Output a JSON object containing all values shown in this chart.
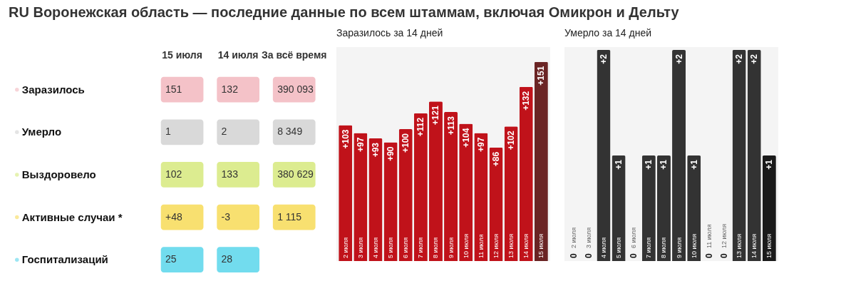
{
  "chart_data": [
    {
      "type": "other",
      "title": "RU Воронежская область — последние данные по всем штаммам, включая Омикрон и Дельту",
      "categories": [
        "15 июля",
        "14 июля",
        "За всё время"
      ],
      "y_categories": [
        "Заразилось",
        "Умерло",
        "Выздоровело",
        "Активные случаи *",
        "Госпитализаций"
      ],
      "colors": [
        "#f4c2c8",
        "#d9d9d9",
        "#dcec90",
        "#f8e070",
        "#72dcee"
      ],
      "cell_labels": [
        [
          "151",
          "132",
          "390 093"
        ],
        [
          "1",
          "2",
          "8 349"
        ],
        [
          "102",
          "133",
          "380 629"
        ],
        [
          "+48",
          "-3",
          "1 115"
        ],
        [
          "25",
          "28",
          null
        ]
      ]
    },
    {
      "type": "bar",
      "title": "Заразилось за 14 дней",
      "categories": [
        "2 июля",
        "3 июля",
        "4 июля",
        "5 июля",
        "6 июля",
        "7 июля",
        "8 июля",
        "9 июля",
        "10 июля",
        "11 июля",
        "12 июля",
        "13 июля",
        "14 июля",
        "15 июля"
      ],
      "values": [
        103,
        97,
        93,
        90,
        100,
        112,
        121,
        113,
        104,
        97,
        86,
        102,
        132,
        151
      ],
      "value_labels": [
        "+103",
        "+97",
        "+93",
        "+90",
        "+100",
        "+112",
        "+121",
        "+113",
        "+104",
        "+97",
        "+86",
        "+102",
        "+132",
        "+151"
      ],
      "colors": [
        "#c0121a",
        "#c0121a",
        "#c0121a",
        "#c0121a",
        "#c0121a",
        "#c0121a",
        "#c0121a",
        "#c0121a",
        "#c0121a",
        "#c0121a",
        "#c0121a",
        "#c0121a",
        "#c0121a",
        "#6a2424"
      ]
    },
    {
      "type": "bar",
      "title": "Умерло за 14 дней",
      "categories": [
        "2 июля",
        "3 июля",
        "4 июля",
        "5 июля",
        "6 июля",
        "7 июля",
        "8 июля",
        "9 июля",
        "10 июля",
        "11 июля",
        "12 июля",
        "13 июля",
        "14 июля",
        "15 июля"
      ],
      "values": [
        0,
        0,
        2,
        1,
        0,
        1,
        1,
        2,
        1,
        0,
        0,
        2,
        2,
        1
      ],
      "value_labels": [
        "0",
        "0",
        "+2",
        "+1",
        "0",
        "+1",
        "+1",
        "+2",
        "+1",
        "0",
        "0",
        "+2",
        "+2",
        "+1"
      ],
      "colors": [
        "#333333",
        "#333333",
        "#333333",
        "#333333",
        "#333333",
        "#333333",
        "#333333",
        "#333333",
        "#333333",
        "#333333",
        "#333333",
        "#333333",
        "#333333",
        "#1a1a1a"
      ]
    }
  ]
}
